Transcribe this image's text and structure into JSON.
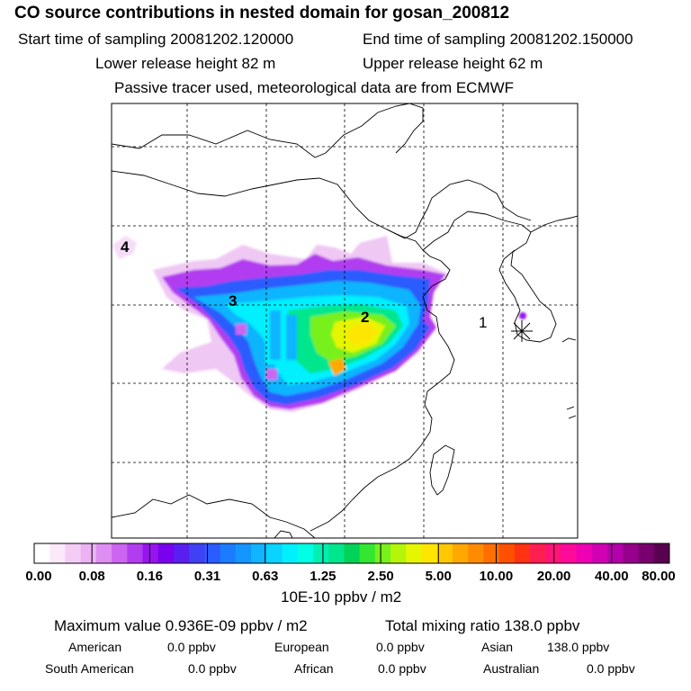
{
  "header": {
    "title": "CO  source contributions in nested domain for gosan_200812",
    "start_label": "Start time of sampling 20081202.120000",
    "end_label": "End time of sampling 20081202.150000",
    "lower_label": "Lower release height   82 m",
    "upper_label": "Upper release height   62 m",
    "tracer_label": "Passive tracer used, meteorological data are from ECMWF"
  },
  "chart_data": {
    "type": "heatmap",
    "title": "CO  source contributions in nested domain for gosan_200812",
    "colorbar": {
      "tick_labels": [
        "0.00",
        "0.08",
        "0.16",
        "0.31",
        "0.63",
        "1.25",
        "2.50",
        "5.00",
        "10.00",
        "20.00",
        "40.00",
        "80.00"
      ],
      "unit_label": "10E-10 ppbv / m2",
      "colors": [
        "#ffffff",
        "#fbe9fb",
        "#f4ccf6",
        "#ecb2f4",
        "#de8ef2",
        "#cc66f0",
        "#b23cf0",
        "#9614ee",
        "#7a00f0",
        "#5a1ef0",
        "#4040f5",
        "#2a5cff",
        "#1c7cff",
        "#1496ff",
        "#10b4ff",
        "#08d4ff",
        "#00f0ff",
        "#00ffe6",
        "#00f0b4",
        "#00e68c",
        "#00d25a",
        "#32e632",
        "#78f01e",
        "#b4f50a",
        "#e6f500",
        "#ffe600",
        "#ffc800",
        "#ffa800",
        "#ff8c00",
        "#ff6e00",
        "#ff5000",
        "#ff3214",
        "#ff1e50",
        "#ff1478",
        "#ff0a9b",
        "#f000b4",
        "#d200b4",
        "#b400aa",
        "#96008c",
        "#78006e",
        "#5a0050"
      ]
    },
    "markers": [
      {
        "label": "1"
      },
      {
        "label": "2"
      },
      {
        "label": "3"
      },
      {
        "label": "4"
      }
    ]
  },
  "stats": {
    "max_label": "Maximum value  0.936E-09 ppbv / m2",
    "total_label": "Total mixing ratio     138.0 ppbv",
    "american_label": "American",
    "american_value": "0.0 ppbv",
    "european_label": "European",
    "european_value": "0.0 ppbv",
    "asian_label": "Asian",
    "asian_value": "138.0 ppbv",
    "south_american_label": "South American",
    "south_american_value": "0.0 ppbv",
    "african_label": "African",
    "african_value": "0.0 ppbv",
    "australian_label": "Australian",
    "australian_value": "0.0 ppbv"
  }
}
